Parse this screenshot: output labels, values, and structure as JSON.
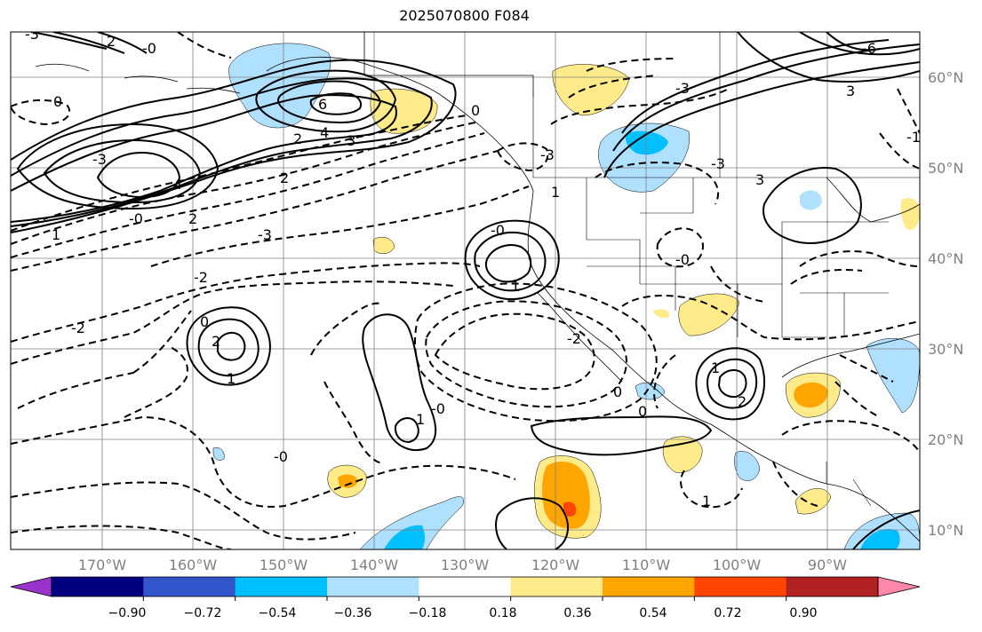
{
  "title": "2025070800 F084",
  "lat_labels": [
    "60°N",
    "50°N",
    "40°N",
    "30°N",
    "20°N",
    "10°N"
  ],
  "lon_labels": [
    "170°W",
    "160°W",
    "150°W",
    "140°W",
    "130°W",
    "120°W",
    "110°W",
    "100°W",
    "90°W"
  ],
  "colorbar": {
    "ticks": [
      "−0.90",
      "−0.72",
      "−0.54",
      "−0.36",
      "−0.18",
      "0.18",
      "0.36",
      "0.54",
      "0.72",
      "0.90"
    ],
    "colors": [
      "#9933cc",
      "#000080",
      "#3355cc",
      "#00bfff",
      "#b0e0ff",
      "#ffffff",
      "#ffeb8a",
      "#ffa500",
      "#ff4500",
      "#b22222",
      "#ff88aa"
    ]
  },
  "contour_labels": [
    {
      "t": "-3"
    },
    {
      "t": "2"
    },
    {
      "t": "-0"
    },
    {
      "t": "0"
    },
    {
      "t": "6"
    },
    {
      "t": "3"
    },
    {
      "t": "4"
    },
    {
      "t": "2"
    },
    {
      "t": "-3"
    },
    {
      "t": "4"
    },
    {
      "t": "2"
    },
    {
      "t": "-0"
    },
    {
      "t": "1"
    },
    {
      "t": "-3"
    },
    {
      "t": "0"
    },
    {
      "t": "2"
    },
    {
      "t": "-3"
    },
    {
      "t": "1"
    },
    {
      "t": "1"
    },
    {
      "t": "-0"
    },
    {
      "t": "-2"
    },
    {
      "t": "0"
    },
    {
      "t": "-2"
    },
    {
      "t": "2"
    },
    {
      "t": "1"
    },
    {
      "t": "1"
    },
    {
      "t": "-0"
    },
    {
      "t": "-0"
    },
    {
      "t": "0"
    },
    {
      "t": "0"
    },
    {
      "t": "-3"
    },
    {
      "t": "-3"
    },
    {
      "t": "3"
    },
    {
      "t": "-0"
    },
    {
      "t": "1"
    },
    {
      "t": "2"
    },
    {
      "t": "1"
    },
    {
      "t": "-2"
    },
    {
      "t": "-6"
    },
    {
      "t": "3"
    },
    {
      "t": "-1"
    }
  ]
}
